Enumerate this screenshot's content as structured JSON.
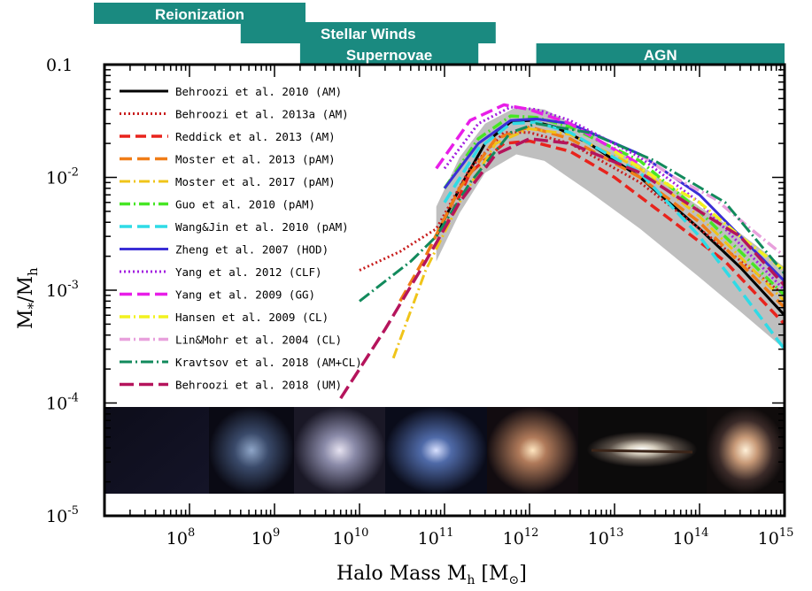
{
  "chart_data": {
    "type": "line",
    "xlabel": "Halo Mass M",
    "xlabel_sub": "h",
    "xlabel_unit": "[M",
    "xlabel_unit_close": "]",
    "xlabel_sun": "⊙",
    "ylabel": "M",
    "ylabel_sub_star": "*",
    "ylabel_slash": "/M",
    "ylabel_sub_h": "h",
    "xscale": "log",
    "yscale": "log",
    "xlim": [
      10000000,
      1000000000000000
    ],
    "ylim": [
      1e-05,
      0.1
    ],
    "x_ticks": [
      {
        "base": "10",
        "exp": "8",
        "value": 100000000
      },
      {
        "base": "10",
        "exp": "9",
        "value": 1000000000
      },
      {
        "base": "10",
        "exp": "10",
        "value": 10000000000
      },
      {
        "base": "10",
        "exp": "11",
        "value": 100000000000
      },
      {
        "base": "10",
        "exp": "12",
        "value": 1000000000000
      },
      {
        "base": "10",
        "exp": "13",
        "value": 10000000000000
      },
      {
        "base": "10",
        "exp": "14",
        "value": 100000000000000
      },
      {
        "base": "10",
        "exp": "15",
        "value": 1000000000000000
      }
    ],
    "y_ticks": [
      {
        "base": "0.1",
        "exp": "",
        "value": 0.1
      },
      {
        "base": "10",
        "exp": "-2",
        "value": 0.01
      },
      {
        "base": "10",
        "exp": "-3",
        "value": 0.001
      },
      {
        "base": "10",
        "exp": "-4",
        "value": 0.0001
      },
      {
        "base": "10",
        "exp": "-5",
        "value": 1e-05
      }
    ],
    "bands": [
      {
        "label": "Reionization",
        "x0": 2000000,
        "x1": 400000000000,
        "row": 0
      },
      {
        "label": "Stellar Winds",
        "x0": 400000000,
        "x1": 400000000000,
        "row": 1
      },
      {
        "label": "Supernovae",
        "x0": 2000000000,
        "x1": 250000000000,
        "row": 2
      },
      {
        "label": "AGN",
        "x0": 1200000000000,
        "x1": 1000000000000000,
        "row": 2
      }
    ],
    "band_color": "#1a8a80",
    "image_strip": {
      "y_top": 0.00014,
      "y_bottom": 1.7e-05
    },
    "shaded_region": {
      "color": "#bfbfbf",
      "upper": [
        [
          80000000000,
          0.0055
        ],
        [
          150000000000,
          0.015
        ],
        [
          300000000000,
          0.03
        ],
        [
          700000000000,
          0.042
        ],
        [
          1500000000000,
          0.04
        ],
        [
          5000000000000,
          0.025
        ],
        [
          20000000000000,
          0.013
        ],
        [
          100000000000000,
          0.0055
        ],
        [
          300000000000000,
          0.0032
        ],
        [
          1000000000000000,
          0.0016
        ]
      ],
      "lower": [
        [
          80000000000,
          0.0018
        ],
        [
          150000000000,
          0.0048
        ],
        [
          300000000000,
          0.011
        ],
        [
          700000000000,
          0.016
        ],
        [
          1500000000000,
          0.014
        ],
        [
          5000000000000,
          0.0075
        ],
        [
          20000000000000,
          0.0035
        ],
        [
          100000000000000,
          0.0013
        ],
        [
          300000000000000,
          0.00065
        ],
        [
          1000000000000000,
          0.0003
        ]
      ]
    },
    "series": [
      {
        "name": "Behroozi et al. 2010 (AM)",
        "color": "#000000",
        "dash": "",
        "width": 3,
        "x": [
          80000000000,
          150000000000,
          300000000000,
          600000000000,
          1000000000000,
          2000000000000,
          5000000000000,
          20000000000000,
          100000000000000,
          300000000000000,
          1000000000000000
        ],
        "y": [
          0.003,
          0.008,
          0.02,
          0.031,
          0.032,
          0.028,
          0.02,
          0.01,
          0.0035,
          0.0016,
          0.0006
        ]
      },
      {
        "name": "Behroozi et al. 2013a (AM)",
        "color": "#c81e1e",
        "dash": "2,3",
        "width": 3,
        "x": [
          10000000000,
          30000000000,
          80000000000,
          200000000000,
          500000000000,
          1000000000000,
          3000000000000,
          20000000000000,
          100000000000000,
          1000000000000000
        ],
        "y": [
          0.0015,
          0.0022,
          0.0035,
          0.012,
          0.025,
          0.025,
          0.02,
          0.009,
          0.0035,
          0.0009
        ]
      },
      {
        "name": "Reddick et al. 2013 (AM)",
        "color": "#e8231c",
        "dash": "12,6",
        "width": 3.5,
        "x": [
          100000000000,
          200000000000,
          500000000000,
          1000000000000,
          3000000000000,
          10000000000000,
          50000000000000,
          200000000000000,
          1000000000000000
        ],
        "y": [
          0.0035,
          0.011,
          0.02,
          0.021,
          0.017,
          0.01,
          0.004,
          0.0018,
          0.0005
        ]
      },
      {
        "name": "Moster et al. 2013 (pAM)",
        "color": "#f07d17",
        "dash": "14,6",
        "width": 3.5,
        "x": [
          30000000000,
          60000000000,
          150000000000,
          400000000000,
          1000000000000,
          3000000000000,
          20000000000000,
          100000000000000,
          1000000000000000
        ],
        "y": [
          0.0008,
          0.002,
          0.008,
          0.022,
          0.028,
          0.022,
          0.01,
          0.004,
          0.0007
        ]
      },
      {
        "name": "Moster et al. 2017 (pAM)",
        "color": "#f0c419",
        "dash": "12,4,2,4",
        "width": 3,
        "x": [
          25000000000,
          60000000000,
          150000000000,
          400000000000,
          1000000000000,
          3000000000000,
          20000000000000,
          100000000000000,
          1000000000000000
        ],
        "y": [
          0.00025,
          0.0015,
          0.006,
          0.02,
          0.027,
          0.024,
          0.012,
          0.0045,
          0.0008
        ]
      },
      {
        "name": "Guo et al. 2010 (pAM)",
        "color": "#47e625",
        "dash": "12,4,2,4",
        "width": 3.5,
        "x": [
          100000000000,
          250000000000,
          600000000000,
          1200000000000,
          3000000000000,
          20000000000000,
          100000000000000,
          1000000000000000
        ],
        "y": [
          0.008,
          0.022,
          0.035,
          0.034,
          0.028,
          0.014,
          0.005,
          0.0009
        ]
      },
      {
        "name": "Wang&Jin et al. 2010 (pAM)",
        "color": "#2fdbe6",
        "dash": "14,6",
        "width": 3.5,
        "x": [
          100000000000,
          250000000000,
          600000000000,
          1200000000000,
          3000000000000,
          20000000000000,
          100000000000000,
          1000000000000000
        ],
        "y": [
          0.006,
          0.018,
          0.03,
          0.031,
          0.025,
          0.011,
          0.003,
          0.0003
        ]
      },
      {
        "name": "Zheng et al. 2007 (HOD)",
        "color": "#3b2fd6",
        "dash": "",
        "width": 3,
        "x": [
          100000000000,
          250000000000,
          600000000000,
          1200000000000,
          3000000000000,
          20000000000000,
          100000000000000,
          1000000000000000
        ],
        "y": [
          0.008,
          0.02,
          0.032,
          0.033,
          0.03,
          0.016,
          0.007,
          0.0012
        ]
      },
      {
        "name": "Yang et al. 2012 (CLF)",
        "color": "#a21ee0",
        "dash": "2,3",
        "width": 3,
        "x": [
          100000000000,
          250000000000,
          600000000000,
          1200000000000,
          3000000000000,
          20000000000000,
          100000000000000,
          1000000000000000
        ],
        "y": [
          0.012,
          0.03,
          0.042,
          0.04,
          0.032,
          0.015,
          0.006,
          0.001
        ]
      },
      {
        "name": "Yang et al. 2009 (GG)",
        "color": "#e81ee8",
        "dash": "14,6",
        "width": 3.5,
        "x": [
          80000000000,
          200000000000,
          500000000000,
          1000000000000,
          3000000000000,
          20000000000000
        ],
        "y": [
          0.012,
          0.032,
          0.044,
          0.04,
          0.03,
          0.013
        ]
      },
      {
        "name": "Hansen et al. 2009 (CL)",
        "color": "#f2f21f",
        "dash": "12,4,2,4",
        "width": 3.5,
        "x": [
          10000000000000,
          30000000000000,
          100000000000000,
          300000000000000,
          1000000000000000
        ],
        "y": [
          0.017,
          0.01,
          0.006,
          0.003,
          0.0015
        ]
      },
      {
        "name": "Lin&Mohr et al. 2004 (CL)",
        "color": "#e8a0dc",
        "dash": "12,4,2,4",
        "width": 3.5,
        "x": [
          20000000000000,
          50000000000000,
          150000000000000,
          400000000000000,
          1000000000000000
        ],
        "y": [
          0.016,
          0.01,
          0.0065,
          0.0035,
          0.002
        ]
      },
      {
        "name": "Kravtsov et al. 2018 (AM+CL)",
        "color": "#128a5c",
        "dash": "14,4,2,4",
        "width": 3,
        "x": [
          10000000000,
          40000000000,
          80000000000,
          200000000000,
          600000000000,
          1200000000000,
          5000000000000,
          30000000000000,
          200000000000000,
          1000000000000000
        ],
        "y": [
          0.0008,
          0.0018,
          0.003,
          0.009,
          0.025,
          0.03,
          0.025,
          0.014,
          0.006,
          0.0014
        ]
      },
      {
        "name": "Behroozi et al. 2018 (UM)",
        "color": "#b5145c",
        "dash": "16,6",
        "width": 3.5,
        "x": [
          6000000000,
          20000000000,
          60000000000,
          150000000000,
          400000000000,
          1000000000000,
          3000000000000,
          20000000000000,
          100000000000000,
          300000000000000,
          1000000000000000
        ],
        "y": [
          0.00011,
          0.00045,
          0.0018,
          0.006,
          0.016,
          0.022,
          0.02,
          0.011,
          0.005,
          0.003,
          0.0011
        ]
      }
    ]
  }
}
